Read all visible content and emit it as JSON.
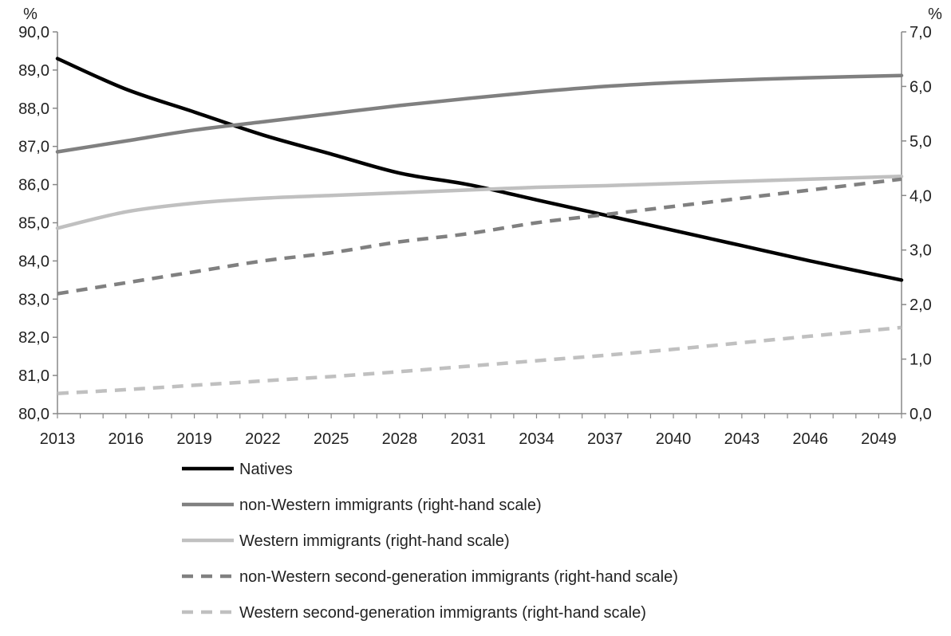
{
  "chart_data": {
    "type": "line",
    "left_axis": {
      "unit": "%",
      "ylim": [
        80,
        90
      ],
      "ticks": [
        "80,0",
        "81,0",
        "82,0",
        "83,0",
        "84,0",
        "85,0",
        "86,0",
        "87,0",
        "88,0",
        "89,0",
        "90,0"
      ]
    },
    "right_axis": {
      "unit": "%",
      "ylim": [
        0,
        7
      ],
      "ticks": [
        "0,0",
        "1,0",
        "2,0",
        "3,0",
        "4,0",
        "5,0",
        "6,0",
        "7,0"
      ]
    },
    "x_ticks": [
      "2013",
      "2016",
      "2019",
      "2022",
      "2025",
      "2028",
      "2031",
      "2034",
      "2037",
      "2040",
      "2043",
      "2046",
      "2049"
    ],
    "xlim": [
      2013,
      2050
    ],
    "grid": false,
    "legend_position": "bottom",
    "series": [
      {
        "name": "Natives",
        "axis": "left",
        "color": "#000000",
        "dashed": false,
        "x": [
          2013,
          2016,
          2019,
          2022,
          2025,
          2028,
          2031,
          2034,
          2037,
          2040,
          2043,
          2046,
          2050
        ],
        "y": [
          89.3,
          88.5,
          87.9,
          87.3,
          86.8,
          86.3,
          86.0,
          85.6,
          85.2,
          84.8,
          84.4,
          84.0,
          83.5
        ]
      },
      {
        "name": "non-Western immigrants (right-hand scale)",
        "axis": "right",
        "color": "#808080",
        "dashed": false,
        "x": [
          2013,
          2016,
          2019,
          2022,
          2025,
          2028,
          2031,
          2034,
          2037,
          2040,
          2043,
          2046,
          2050
        ],
        "y": [
          4.8,
          5.0,
          5.2,
          5.35,
          5.5,
          5.65,
          5.78,
          5.9,
          6.0,
          6.07,
          6.12,
          6.16,
          6.2
        ]
      },
      {
        "name": "Western immigrants (right-hand scale)",
        "axis": "right",
        "color": "#c0c0c0",
        "dashed": false,
        "x": [
          2013,
          2016,
          2019,
          2022,
          2025,
          2028,
          2031,
          2034,
          2037,
          2040,
          2043,
          2046,
          2050
        ],
        "y": [
          3.4,
          3.7,
          3.86,
          3.95,
          4.0,
          4.05,
          4.1,
          4.15,
          4.18,
          4.22,
          4.26,
          4.3,
          4.35
        ]
      },
      {
        "name": "non-Western second-generation immigrants (right-hand scale)",
        "axis": "right",
        "color": "#808080",
        "dashed": true,
        "x": [
          2013,
          2016,
          2019,
          2022,
          2025,
          2028,
          2031,
          2034,
          2037,
          2040,
          2043,
          2046,
          2050
        ],
        "y": [
          2.2,
          2.4,
          2.6,
          2.8,
          2.95,
          3.15,
          3.3,
          3.5,
          3.65,
          3.8,
          3.95,
          4.1,
          4.3
        ]
      },
      {
        "name": "Western second-generation immigrants (right-hand scale)",
        "axis": "right",
        "color": "#c0c0c0",
        "dashed": true,
        "x": [
          2013,
          2016,
          2019,
          2022,
          2025,
          2028,
          2031,
          2034,
          2037,
          2040,
          2043,
          2046,
          2050
        ],
        "y": [
          0.37,
          0.44,
          0.52,
          0.6,
          0.68,
          0.77,
          0.87,
          0.97,
          1.07,
          1.18,
          1.3,
          1.42,
          1.58
        ]
      }
    ]
  }
}
